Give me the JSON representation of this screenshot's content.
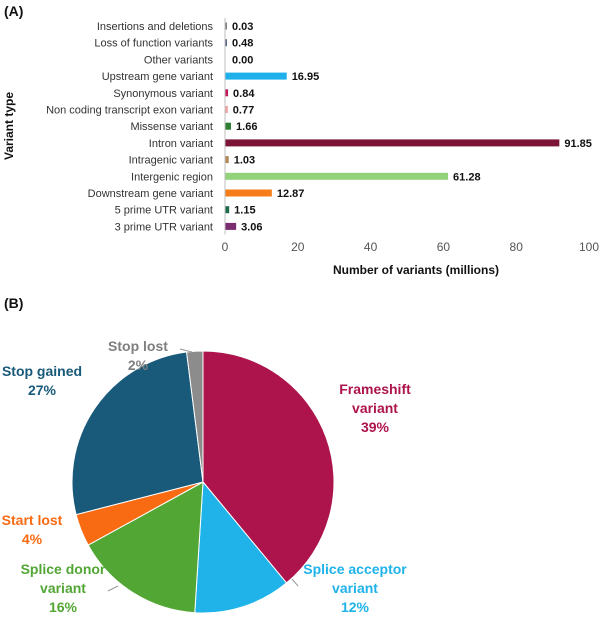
{
  "chart_data": [
    {
      "panel": "(A)",
      "type": "bar",
      "orientation": "horizontal",
      "ylabel": "Variant type",
      "xlabel": "Number of variants (millions)",
      "xlim": [
        0,
        100
      ],
      "xticks": [
        0,
        20,
        40,
        60,
        80,
        100
      ],
      "grid": false,
      "bars": [
        {
          "label": "Insertions and deletions",
          "value": 0.03,
          "value_label": "0.03",
          "color": "#7f7f7f"
        },
        {
          "label": "Loss of function variants",
          "value": 0.48,
          "value_label": "0.48",
          "color": "#5b6a8a"
        },
        {
          "label": "Other variants",
          "value": 0.0,
          "value_label": "0.00",
          "color": "#7f7f7f"
        },
        {
          "label": "Upstream gene variant",
          "value": 16.95,
          "value_label": "16.95",
          "color": "#1fb0ec"
        },
        {
          "label": "Synonymous variant",
          "value": 0.84,
          "value_label": "0.84",
          "color": "#c2185b"
        },
        {
          "label": "Non coding transcript exon variant",
          "value": 0.77,
          "value_label": "0.77",
          "color": "#f0a0a0"
        },
        {
          "label": "Missense variant",
          "value": 1.66,
          "value_label": "1.66",
          "color": "#2e7d32"
        },
        {
          "label": "Intron variant",
          "value": 91.85,
          "value_label": "91.85",
          "color": "#7b1436"
        },
        {
          "label": "Intragenic variant",
          "value": 1.03,
          "value_label": "1.03",
          "color": "#b08a5a"
        },
        {
          "label": "Intergenic region",
          "value": 61.28,
          "value_label": "61.28",
          "color": "#92d27a"
        },
        {
          "label": "Downstream gene variant",
          "value": 12.87,
          "value_label": "12.87",
          "color": "#f57c16"
        },
        {
          "label": "5 prime UTR variant",
          "value": 1.15,
          "value_label": "1.15",
          "color": "#1e6b4a"
        },
        {
          "label": "3 prime UTR variant",
          "value": 3.06,
          "value_label": "3.06",
          "color": "#7b2d6f"
        }
      ]
    },
    {
      "panel": "(B)",
      "type": "pie",
      "legend": "none",
      "slices": [
        {
          "label_lines": [
            "Frameshift",
            "variant"
          ],
          "pct_label": "39%",
          "value": 39,
          "color": "#ae144c"
        },
        {
          "label_lines": [
            "Splice acceptor",
            "variant"
          ],
          "pct_label": "12%",
          "value": 12,
          "color": "#1fb3ea"
        },
        {
          "label_lines": [
            "Splice donor",
            "variant"
          ],
          "pct_label": "16%",
          "value": 16,
          "color": "#52a634"
        },
        {
          "label_lines": [
            "Start lost"
          ],
          "pct_label": "4%",
          "value": 4,
          "color": "#f96b13"
        },
        {
          "label_lines": [
            "Stop gained"
          ],
          "pct_label": "27%",
          "value": 27,
          "color": "#195a7a"
        },
        {
          "label_lines": [
            "Stop lost"
          ],
          "pct_label": "2%",
          "value": 2,
          "color": "#8c8c8c"
        }
      ]
    }
  ]
}
